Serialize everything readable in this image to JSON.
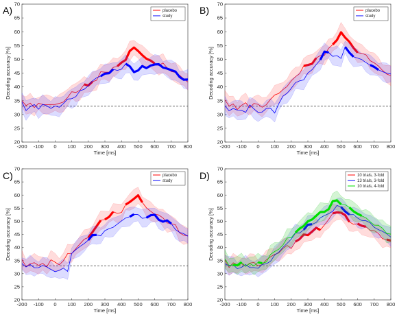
{
  "chart_data": [
    {
      "type": "line",
      "panel_label": "A)",
      "xlabel": "Time [ms]",
      "ylabel": "Decoding accuracy [%]",
      "xlim": [
        -200,
        800
      ],
      "ylim": [
        20,
        70
      ],
      "xticks": [
        "-200",
        "-100",
        "0",
        "100",
        "200",
        "300",
        "400",
        "500",
        "600",
        "700",
        "800"
      ],
      "yticks": [
        "20",
        "25",
        "30",
        "35",
        "40",
        "45",
        "50",
        "55",
        "60",
        "65",
        "70"
      ],
      "chance_level": 33,
      "legend_position": "top-right",
      "x": [
        -200,
        -175,
        -150,
        -125,
        -100,
        -75,
        -50,
        -25,
        0,
        25,
        50,
        75,
        100,
        125,
        150,
        175,
        200,
        225,
        250,
        275,
        300,
        325,
        350,
        375,
        400,
        425,
        450,
        475,
        500,
        525,
        550,
        575,
        600,
        625,
        650,
        675,
        700,
        725,
        750,
        775,
        800
      ],
      "series": [
        {
          "name": "placebo",
          "color": "#ff0000",
          "values": [
            35,
            33,
            34,
            33,
            34,
            33,
            34,
            34,
            33,
            34,
            35,
            36,
            38,
            38,
            39,
            41,
            40,
            42,
            43,
            45,
            45,
            46,
            47,
            47,
            49,
            50,
            53,
            54,
            53,
            52,
            50,
            49,
            49,
            48,
            48,
            47,
            46,
            45,
            44,
            43,
            42
          ],
          "thick": [
            [
              175,
              225
            ],
            [
              375,
              600
            ]
          ]
        },
        {
          "name": "study",
          "color": "#0000ff",
          "values": [
            34,
            32,
            33,
            33,
            32,
            34,
            33,
            32,
            33,
            33,
            34,
            35,
            36,
            37,
            38,
            39,
            41,
            42,
            43,
            44,
            45,
            45,
            46,
            46,
            47,
            48,
            47,
            46,
            46,
            47,
            47,
            48,
            48,
            48,
            47,
            47,
            46,
            45,
            44,
            43,
            42
          ],
          "thick": [
            [
              275,
              350
            ],
            [
              425,
              800
            ]
          ]
        }
      ]
    },
    {
      "type": "line",
      "panel_label": "B)",
      "xlabel": "Time [ms]",
      "ylabel": "Decoding accuracy [%]",
      "xlim": [
        -200,
        800
      ],
      "ylim": [
        20,
        70
      ],
      "xticks": [
        "-200",
        "-100",
        "0",
        "100",
        "200",
        "300",
        "400",
        "500",
        "600",
        "700",
        "800"
      ],
      "yticks": [
        "20",
        "25",
        "30",
        "35",
        "40",
        "45",
        "50",
        "55",
        "60",
        "65",
        "70"
      ],
      "chance_level": 33,
      "legend_position": "top-right",
      "x": [
        -200,
        -175,
        -150,
        -125,
        -100,
        -75,
        -50,
        -25,
        0,
        25,
        50,
        75,
        100,
        125,
        150,
        175,
        200,
        225,
        250,
        275,
        300,
        325,
        350,
        375,
        400,
        425,
        450,
        475,
        500,
        525,
        550,
        575,
        600,
        625,
        650,
        675,
        700,
        725,
        750,
        775,
        800
      ],
      "series": [
        {
          "name": "placebo",
          "color": "#ff0000",
          "values": [
            35,
            33,
            34,
            32,
            33,
            34,
            33,
            34,
            33,
            33,
            34,
            35,
            37,
            38,
            39,
            40,
            42,
            44,
            45,
            47,
            48,
            49,
            50,
            51,
            52,
            54,
            55,
            57,
            60,
            58,
            56,
            54,
            53,
            52,
            51,
            50,
            49,
            47,
            46,
            45,
            44
          ],
          "thick": [
            [
              275,
              350
            ],
            [
              450,
              600
            ]
          ]
        },
        {
          "name": "study",
          "color": "#0000ff",
          "values": [
            33,
            32,
            32,
            31,
            32,
            31,
            33,
            32,
            31,
            31,
            32,
            32,
            31,
            34,
            36,
            38,
            40,
            41,
            42,
            43,
            45,
            46,
            48,
            50,
            53,
            52,
            51,
            52,
            50,
            54,
            53,
            51,
            50,
            50,
            49,
            48,
            47,
            46,
            46,
            45,
            44
          ],
          "thick": [
            [
              375,
              425
            ],
            [
              525,
              575
            ],
            [
              675,
              725
            ]
          ]
        }
      ]
    },
    {
      "type": "line",
      "panel_label": "C)",
      "xlabel": "Time [ms]",
      "ylabel": "Decoding accuracy [%]",
      "xlim": [
        -200,
        800
      ],
      "ylim": [
        20,
        70
      ],
      "xticks": [
        "-200",
        "-100",
        "0",
        "100",
        "200",
        "300",
        "400",
        "500",
        "600",
        "700",
        "800"
      ],
      "yticks": [
        "20",
        "25",
        "30",
        "35",
        "40",
        "45",
        "50",
        "55",
        "60",
        "65",
        "70"
      ],
      "chance_level": 33,
      "legend_position": "top-right",
      "x": [
        -200,
        -175,
        -150,
        -125,
        -100,
        -75,
        -50,
        -25,
        0,
        25,
        50,
        75,
        100,
        125,
        150,
        175,
        200,
        225,
        250,
        275,
        300,
        325,
        350,
        375,
        400,
        425,
        450,
        475,
        500,
        525,
        550,
        575,
        600,
        625,
        650,
        675,
        700,
        725,
        750,
        775,
        800
      ],
      "series": [
        {
          "name": "placebo",
          "color": "#ff0000",
          "values": [
            35,
            33,
            34,
            34,
            33,
            34,
            33,
            35,
            34,
            34,
            35,
            37,
            38,
            40,
            41,
            43,
            44,
            46,
            48,
            50,
            51,
            52,
            53,
            53,
            54,
            56,
            57,
            59,
            60,
            57,
            55,
            54,
            53,
            52,
            51,
            50,
            49,
            48,
            46,
            45,
            44
          ],
          "thick": [
            [
              200,
              275
            ],
            [
              300,
              350
            ],
            [
              425,
              525
            ]
          ]
        },
        {
          "name": "study",
          "color": "#0000ff",
          "values": [
            34,
            33,
            33,
            32,
            33,
            33,
            32,
            32,
            31,
            31,
            32,
            31,
            38,
            39,
            40,
            42,
            43,
            44,
            45,
            45,
            46,
            47,
            48,
            49,
            50,
            51,
            52,
            53,
            52,
            51,
            52,
            52,
            52,
            51,
            50,
            50,
            49,
            47,
            46,
            45,
            44
          ],
          "thick": [
            [
              200,
              250
            ],
            [
              450,
              475
            ],
            [
              550,
              700
            ]
          ]
        }
      ]
    },
    {
      "type": "line",
      "panel_label": "D)",
      "xlabel": "Time [ms]",
      "ylabel": "Decoding accuracy [%]",
      "xlim": [
        -200,
        800
      ],
      "ylim": [
        20,
        70
      ],
      "xticks": [
        "-200",
        "-100",
        "0",
        "100",
        "200",
        "300",
        "400",
        "500",
        "600",
        "700",
        "800"
      ],
      "yticks": [
        "20",
        "25",
        "30",
        "35",
        "40",
        "45",
        "50",
        "55",
        "60",
        "65",
        "70"
      ],
      "chance_level": 33,
      "legend_position": "top-right",
      "x": [
        -200,
        -175,
        -150,
        -125,
        -100,
        -75,
        -50,
        -25,
        0,
        25,
        50,
        75,
        100,
        125,
        150,
        175,
        200,
        225,
        250,
        275,
        300,
        325,
        350,
        375,
        400,
        425,
        450,
        475,
        500,
        525,
        550,
        575,
        600,
        625,
        650,
        675,
        700,
        725,
        750,
        775,
        800
      ],
      "series": [
        {
          "name": "10 trials, 3-fold",
          "color": "#ff0000",
          "values": [
            35,
            33,
            34,
            33,
            34,
            33,
            34,
            34,
            33,
            34,
            35,
            36,
            38,
            38,
            39,
            41,
            40,
            42,
            43,
            45,
            45,
            46,
            47,
            47,
            49,
            50,
            53,
            54,
            53,
            52,
            50,
            49,
            49,
            48,
            48,
            47,
            46,
            45,
            44,
            43,
            42
          ],
          "thick": [
            [
              225,
              375
            ],
            [
              450,
              550
            ],
            [
              600,
              650
            ],
            [
              775,
              800
            ]
          ]
        },
        {
          "name": "13 trials, 3-fold",
          "color": "#0000ff",
          "values": [
            34,
            33,
            33,
            32,
            33,
            33,
            32,
            33,
            32,
            33,
            34,
            35,
            37,
            38,
            40,
            42,
            43,
            45,
            46,
            47,
            48,
            49,
            50,
            51,
            52,
            53,
            54,
            56,
            55,
            54,
            53,
            52,
            51,
            51,
            50,
            49,
            48,
            47,
            46,
            45,
            44
          ],
          "thick": [
            [
              275,
              325
            ],
            [
              500,
              550
            ]
          ]
        },
        {
          "name": "10 trials, 4-fold",
          "color": "#00e000",
          "values": [
            35,
            33,
            34,
            33,
            34,
            33,
            34,
            33,
            34,
            34,
            35,
            37,
            38,
            40,
            41,
            43,
            44,
            46,
            47,
            48,
            50,
            51,
            52,
            53,
            54,
            55,
            57,
            58,
            57,
            56,
            55,
            54,
            53,
            52,
            51,
            50,
            49,
            48,
            47,
            46,
            45
          ],
          "thick": [
            [
              -150,
              -100
            ],
            [
              0,
              25
            ],
            [
              225,
              500
            ],
            [
              550,
              625
            ]
          ]
        }
      ]
    }
  ]
}
